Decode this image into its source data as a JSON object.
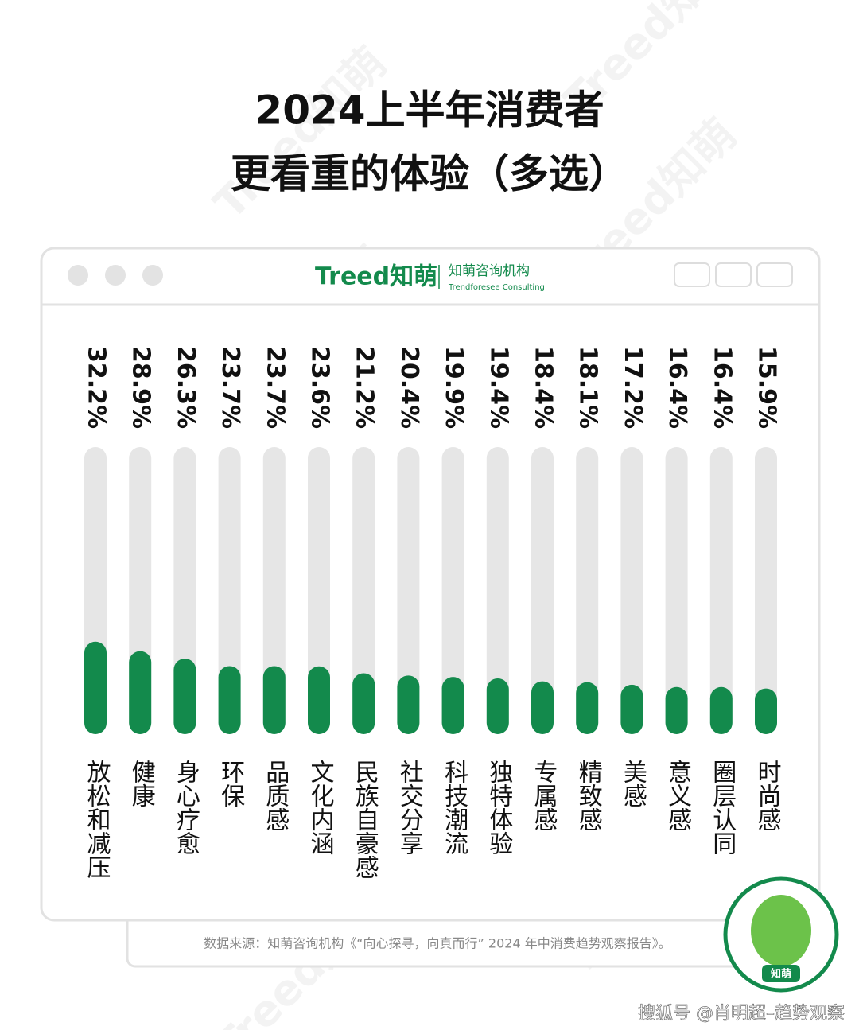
{
  "chart_data": {
    "type": "bar",
    "title": [
      "2024上半年消费者",
      "更看重的体验（多选）"
    ],
    "categories": [
      "放松和减压",
      "健康",
      "身心疗愈",
      "环保",
      "品质感",
      "文化内涵",
      "民族自豪感",
      "社交分享",
      "科技潮流",
      "独特体验",
      "专属感",
      "精致感",
      "美感",
      "意义感",
      "圈层认同",
      "时尚感"
    ],
    "values": [
      32.2,
      28.9,
      26.3,
      23.7,
      23.7,
      23.6,
      21.2,
      20.4,
      19.9,
      19.4,
      18.4,
      18.1,
      17.2,
      16.4,
      16.4,
      15.9
    ],
    "value_labels": [
      "32.2%",
      "28.9%",
      "26.3%",
      "23.7%",
      "23.7%",
      "23.6%",
      "21.2%",
      "20.4%",
      "19.9%",
      "19.4%",
      "18.4%",
      "18.1%",
      "17.2%",
      "16.4%",
      "16.4%",
      "15.9%"
    ],
    "color": "#138a4c",
    "track_color": "#e6e6e6",
    "ylim": [
      0,
      100
    ]
  },
  "window": {
    "logo": "Treed知萌",
    "brand": "知萌咨询机构",
    "brand_en": "Trendforesee Consulting"
  },
  "source": "数据来源：知萌咨询机构《“向心探寻，向真而行” 2024 年中消费趋势观察报告》。",
  "mascot_label": "知萌",
  "watermark": "Treed知萌",
  "footer": "搜狐号 @肖明超–趋势观察"
}
